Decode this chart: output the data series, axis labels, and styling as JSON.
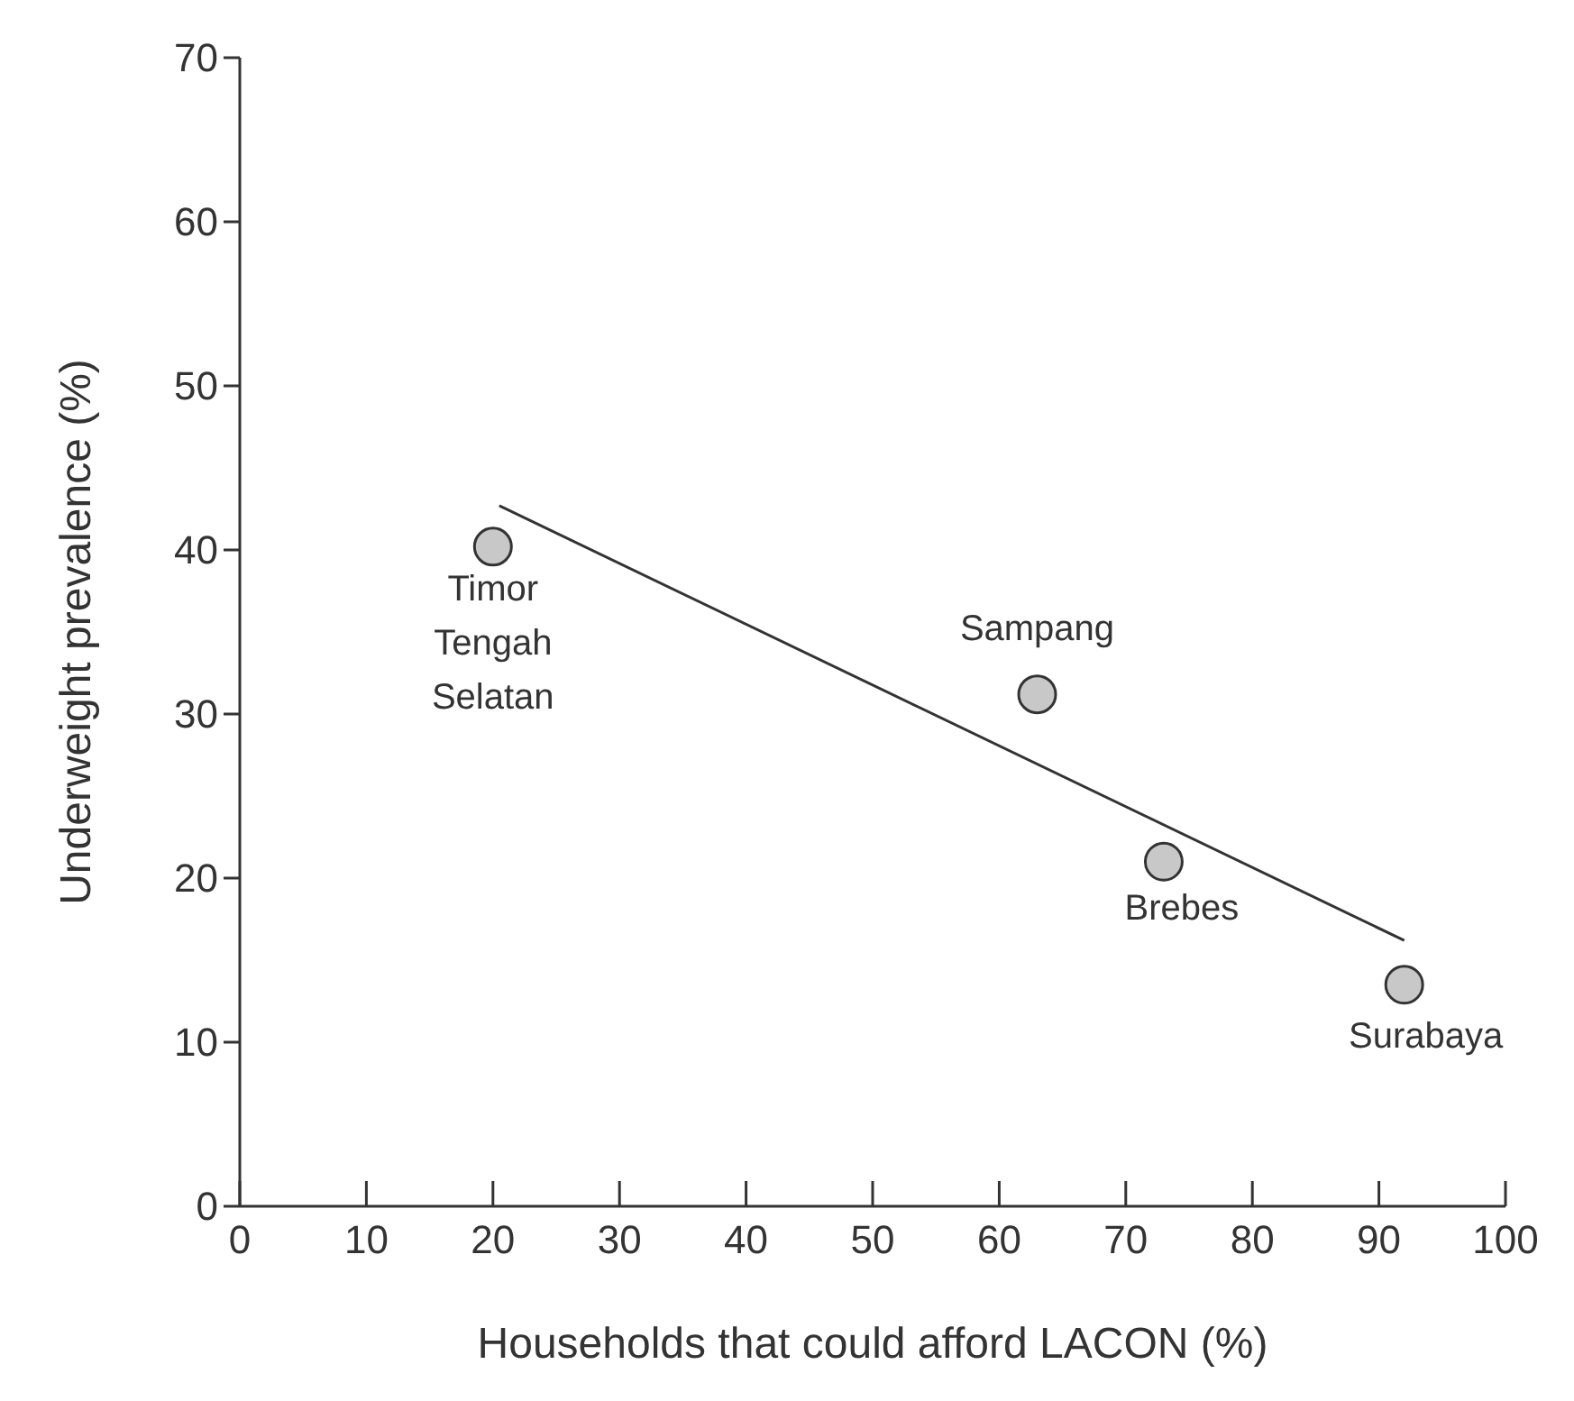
{
  "chart_data": {
    "type": "scatter",
    "xlabel": "Households that could afford LACON (%)",
    "ylabel": "Underweight prevalence (%)",
    "xlim": [
      0,
      100
    ],
    "xticks": [
      0,
      10,
      20,
      30,
      40,
      50,
      60,
      70,
      80,
      90,
      100
    ],
    "ylim": [
      0,
      70
    ],
    "yticks": [
      0,
      10,
      20,
      30,
      40,
      50,
      60,
      70
    ],
    "grid": false,
    "marker": "circle",
    "series": [
      {
        "color": "#c8c8c8",
        "x": [
          20,
          63,
          73,
          92
        ],
        "values": [
          40.2,
          31.2,
          21,
          13.5
        ]
      },
      {
        "type": "line",
        "color": "#333333",
        "x": [
          20.5,
          92
        ],
        "values": [
          42.7,
          16.2
        ],
        "marker": "none"
      }
    ],
    "annotations": [
      {
        "text": "Timor\nTengah\nSelatan",
        "x": 20,
        "y": 40.2
      },
      {
        "text": "Sampang",
        "x": 63,
        "y": 31.2
      },
      {
        "text": "Brebes",
        "x": 73,
        "y": 21
      },
      {
        "text": "Surabaya",
        "x": 92,
        "y": 13.5
      }
    ]
  }
}
